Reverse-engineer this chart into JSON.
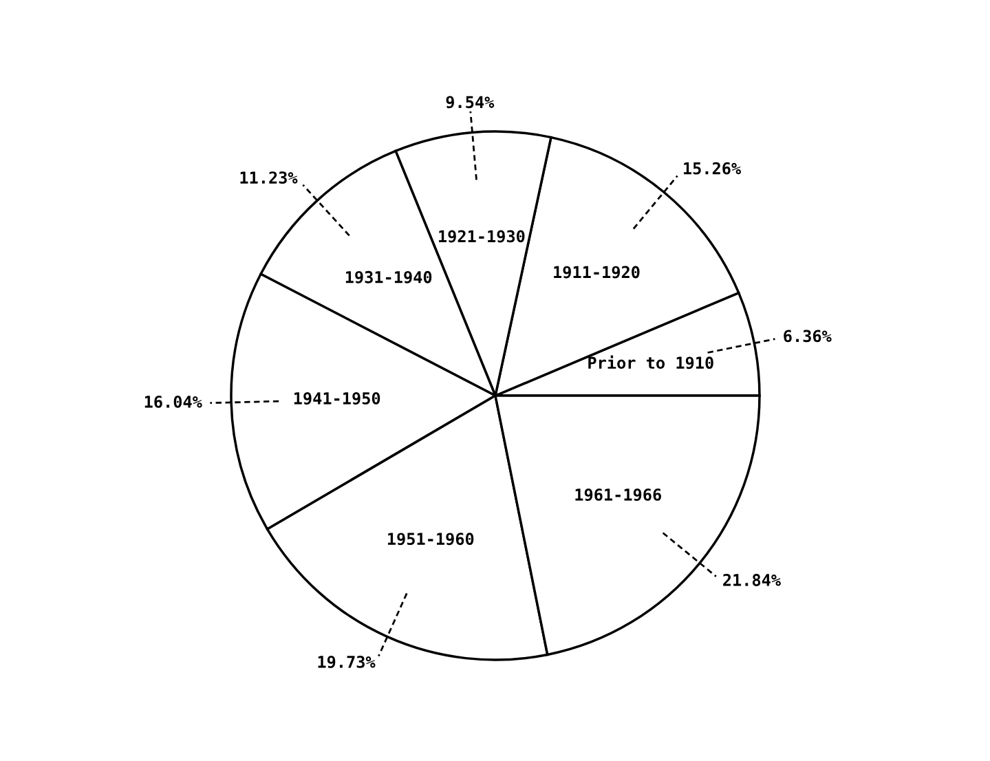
{
  "chart_data": {
    "type": "pie",
    "categories": [
      "Prior to 1910",
      "1911-1920",
      "1921-1930",
      "1931-1940",
      "1941-1950",
      "1951-1960",
      "1961-1966"
    ],
    "values": [
      6.36,
      15.26,
      9.54,
      11.23,
      16.04,
      19.73,
      21.84
    ],
    "value_labels": [
      "6.36%",
      "15.26%",
      "9.54%",
      "11.23%",
      "16.04%",
      "19.73%",
      "21.84%"
    ],
    "colors": [
      "#ffffff",
      "#ffffff",
      "#ffffff",
      "#ffffff",
      "#ffffff",
      "#ffffff",
      "#ffffff"
    ]
  }
}
